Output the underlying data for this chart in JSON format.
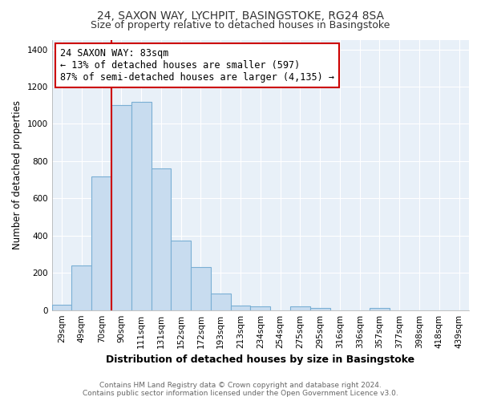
{
  "title": "24, SAXON WAY, LYCHPIT, BASINGSTOKE, RG24 8SA",
  "subtitle": "Size of property relative to detached houses in Basingstoke",
  "xlabel": "Distribution of detached houses by size in Basingstoke",
  "ylabel": "Number of detached properties",
  "bar_labels": [
    "29sqm",
    "49sqm",
    "70sqm",
    "90sqm",
    "111sqm",
    "131sqm",
    "152sqm",
    "172sqm",
    "193sqm",
    "213sqm",
    "234sqm",
    "254sqm",
    "275sqm",
    "295sqm",
    "316sqm",
    "336sqm",
    "357sqm",
    "377sqm",
    "398sqm",
    "418sqm",
    "439sqm"
  ],
  "bar_values": [
    30,
    240,
    720,
    1100,
    1120,
    760,
    375,
    230,
    90,
    25,
    20,
    0,
    20,
    10,
    0,
    0,
    10,
    0,
    0,
    0,
    0
  ],
  "bar_color": "#c8dcef",
  "bar_edge_color": "#7aafd4",
  "vline_color": "#cc0000",
  "vline_x": 3.5,
  "annotation_title": "24 SAXON WAY: 83sqm",
  "annotation_line1": "← 13% of detached houses are smaller (597)",
  "annotation_line2": "87% of semi-detached houses are larger (4,135) →",
  "annotation_box_color": "#ffffff",
  "annotation_border_color": "#cc0000",
  "ylim": [
    0,
    1450
  ],
  "yticks": [
    0,
    200,
    400,
    600,
    800,
    1000,
    1200,
    1400
  ],
  "plot_bg_color": "#e8f0f8",
  "grid_color": "#ffffff",
  "footer_line1": "Contains HM Land Registry data © Crown copyright and database right 2024.",
  "footer_line2": "Contains public sector information licensed under the Open Government Licence v3.0.",
  "title_fontsize": 10,
  "subtitle_fontsize": 9,
  "xlabel_fontsize": 9,
  "ylabel_fontsize": 8.5,
  "tick_fontsize": 7.5,
  "footer_fontsize": 6.5,
  "annotation_fontsize": 8.5
}
